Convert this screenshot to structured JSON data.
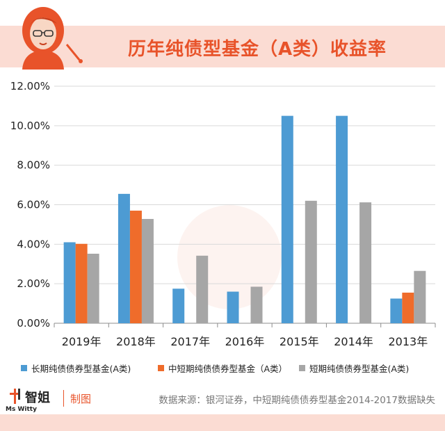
{
  "header": {
    "title": "历年纯债型基金（A类）收益率"
  },
  "chart_data": {
    "type": "bar",
    "title": "历年纯债型基金（A类）收益率",
    "categories": [
      "2019年",
      "2018年",
      "2017年",
      "2016年",
      "2015年",
      "2014年",
      "2013年"
    ],
    "series": [
      {
        "name": "长期纯债债券型基金(A类)",
        "color": "#4d9bd3",
        "values": [
          4.1,
          6.55,
          1.75,
          1.6,
          10.5,
          10.5,
          1.25
        ]
      },
      {
        "name": "中短期纯债债券型基金（A类）",
        "color": "#ef6c2b",
        "values": [
          4.02,
          5.7,
          null,
          null,
          null,
          null,
          1.55
        ]
      },
      {
        "name": "短期纯债债券型基金(A类)",
        "color": "#a6a6a6",
        "values": [
          3.52,
          5.28,
          3.42,
          1.85,
          6.2,
          6.12,
          2.65
        ]
      }
    ],
    "ylim": [
      0,
      12
    ],
    "yticks": [
      "0.00%",
      "2.00%",
      "4.00%",
      "6.00%",
      "8.00%",
      "10.00%",
      "12.00%"
    ],
    "xlabel": "",
    "ylabel": "",
    "grid": true,
    "legend_position": "bottom"
  },
  "footer": {
    "brand": "Ms Witty",
    "brand_cn": "智姐",
    "credit": "制图",
    "source": "数据来源：银河证券，中短期纯债债券型基金2014-2017数据缺失"
  }
}
